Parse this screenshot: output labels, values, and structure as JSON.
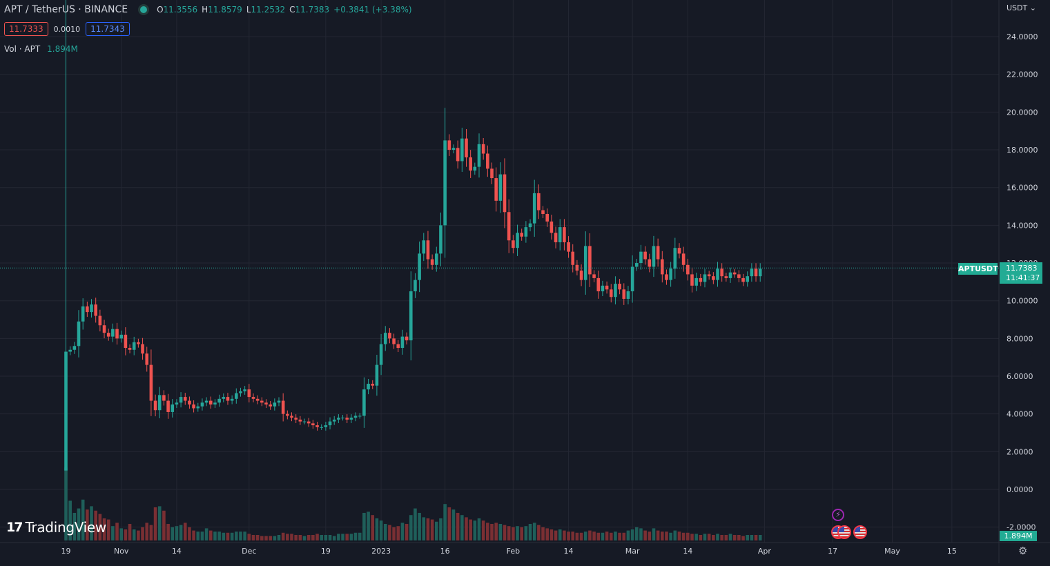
{
  "legend": {
    "title": "APT / TetherUS · BINANCE",
    "open_key": "O",
    "open": "11.3556",
    "high_key": "H",
    "high": "11.8579",
    "low_key": "L",
    "low": "11.2532",
    "close_key": "C",
    "close": "11.7383",
    "change": "+0.3841 (+3.38%)"
  },
  "quote": {
    "bid": "11.7333",
    "spread": "0.0010",
    "ask": "11.7343"
  },
  "volume_legend": {
    "label": "Vol · APT",
    "value": "1.894M"
  },
  "currency_label": "USDT ⌄",
  "last_price": {
    "symbol": "APTUSDT",
    "price": "11.7383",
    "countdown": "11:41:37"
  },
  "volume_badge": "1.894M",
  "logo": {
    "mark": "17",
    "word": "TradingView"
  },
  "icons": {
    "flash": "flash-icon",
    "flag": "us-flag-icon",
    "settings": "gear-icon"
  },
  "colors": {
    "background": "#161a25",
    "up": "#26a69a",
    "down": "#ef5350",
    "grid": "#242733",
    "badge": "#22ab94"
  },
  "chart_data": {
    "type": "candlestick",
    "symbol": "APT / TetherUS · BINANCE",
    "ylim": [
      -2,
      25
    ],
    "y_ticks": [
      "24.0000",
      "22.0000",
      "20.0000",
      "18.0000",
      "16.0000",
      "14.0000",
      "12.0000",
      "10.0000",
      "8.0000",
      "6.0000",
      "4.0000",
      "2.0000",
      "0.0000",
      "-2.0000"
    ],
    "y_tick_values": [
      24,
      22,
      20,
      18,
      16,
      14,
      12,
      10,
      8,
      6,
      4,
      2,
      0,
      -2
    ],
    "x_ticks": [
      {
        "label": "19",
        "bar": 0
      },
      {
        "label": "Nov",
        "bar": 13
      },
      {
        "label": "14",
        "bar": 26
      },
      {
        "label": "Dec",
        "bar": 43
      },
      {
        "label": "19",
        "bar": 61
      },
      {
        "label": "2023",
        "bar": 74
      },
      {
        "label": "16",
        "bar": 89
      },
      {
        "label": "Feb",
        "bar": 105
      },
      {
        "label": "14",
        "bar": 118
      },
      {
        "label": "Mar",
        "bar": 133
      },
      {
        "label": "14",
        "bar": 146
      },
      {
        "label": "Apr",
        "bar": 164
      },
      {
        "label": "17",
        "bar": 180
      },
      {
        "label": "May",
        "bar": 194
      },
      {
        "label": "15",
        "bar": 208
      }
    ],
    "last_price": 11.7383,
    "closes": [
      7.3,
      7.4,
      7.6,
      8.9,
      9.7,
      9.4,
      9.8,
      9.2,
      8.7,
      8.3,
      8.1,
      8.5,
      8.0,
      8.2,
      7.5,
      7.4,
      7.8,
      7.7,
      7.2,
      6.6,
      4.7,
      4.2,
      5.0,
      4.7,
      4.1,
      4.5,
      4.6,
      4.9,
      4.7,
      4.5,
      4.3,
      4.4,
      4.6,
      4.7,
      4.5,
      4.6,
      4.8,
      4.9,
      4.7,
      4.8,
      5.1,
      5.2,
      5.3,
      4.9,
      4.8,
      4.7,
      4.6,
      4.5,
      4.4,
      4.6,
      4.7,
      4.0,
      3.9,
      3.8,
      3.7,
      3.6,
      3.6,
      3.5,
      3.4,
      3.3,
      3.3,
      3.4,
      3.6,
      3.7,
      3.8,
      3.8,
      3.7,
      3.8,
      3.9,
      3.9,
      5.3,
      5.6,
      5.5,
      6.6,
      7.7,
      8.3,
      8.0,
      7.7,
      7.5,
      8.1,
      7.9,
      10.5,
      11.1,
      12.5,
      13.2,
      12.2,
      11.9,
      12.5,
      14.0,
      18.5,
      18.0,
      18.1,
      17.4,
      18.6,
      17.6,
      16.9,
      17.1,
      18.3,
      17.8,
      17.0,
      16.5,
      15.3,
      16.7,
      14.7,
      13.2,
      12.8,
      13.6,
      13.4,
      13.9,
      14.1,
      15.7,
      14.8,
      14.6,
      14.2,
      13.6,
      13.1,
      13.9,
      13.1,
      12.6,
      11.9,
      11.6,
      11.1,
      12.9,
      11.4,
      11.2,
      10.5,
      10.8,
      10.6,
      10.2,
      10.9,
      10.6,
      10.1,
      10.5,
      11.8,
      12.0,
      12.6,
      12.2,
      11.8,
      12.9,
      12.2,
      11.4,
      11.1,
      11.7,
      12.8,
      12.5,
      11.9,
      11.4,
      10.8,
      11.2,
      11.0,
      11.4,
      11.3,
      11.1,
      11.7,
      11.3,
      11.2,
      11.5,
      11.4,
      11.2,
      11.0,
      11.3,
      11.7,
      11.3,
      11.7
    ],
    "volumes": [
      6.6,
      3.6,
      2.5,
      2.9,
      3.7,
      2.8,
      3.1,
      2.7,
      2.4,
      2.0,
      1.9,
      1.3,
      1.6,
      1.1,
      1.0,
      1.5,
      1.0,
      0.9,
      1.2,
      1.6,
      1.4,
      3.0,
      3.1,
      2.7,
      1.5,
      1.2,
      1.3,
      1.4,
      1.6,
      1.2,
      0.9,
      0.8,
      0.8,
      1.1,
      0.9,
      0.8,
      0.8,
      0.7,
      0.7,
      0.7,
      0.8,
      0.8,
      0.8,
      0.6,
      0.5,
      0.5,
      0.4,
      0.4,
      0.4,
      0.4,
      0.5,
      0.7,
      0.6,
      0.6,
      0.5,
      0.5,
      0.4,
      0.5,
      0.5,
      0.6,
      0.5,
      0.5,
      0.5,
      0.4,
      0.6,
      0.6,
      0.6,
      0.6,
      0.7,
      0.7,
      2.5,
      2.6,
      2.3,
      2.0,
      1.8,
      1.5,
      1.4,
      1.2,
      1.3,
      1.6,
      1.5,
      2.3,
      2.9,
      2.5,
      2.1,
      2.0,
      1.9,
      1.7,
      2.0,
      3.3,
      3.0,
      2.8,
      2.5,
      2.3,
      2.1,
      1.9,
      1.8,
      2.0,
      1.8,
      1.6,
      1.5,
      1.6,
      1.5,
      1.4,
      1.3,
      1.2,
      1.3,
      1.2,
      1.3,
      1.5,
      1.6,
      1.4,
      1.2,
      1.1,
      1.0,
      0.9,
      1.0,
      0.9,
      0.8,
      0.8,
      0.7,
      0.7,
      0.8,
      0.9,
      0.8,
      0.7,
      0.7,
      0.8,
      0.7,
      0.8,
      0.7,
      0.7,
      0.9,
      1.0,
      1.2,
      1.1,
      0.9,
      0.8,
      1.1,
      0.9,
      0.8,
      0.8,
      0.7,
      0.9,
      0.8,
      0.7,
      0.7,
      0.6,
      0.6,
      0.5,
      0.6,
      0.6,
      0.5,
      0.6,
      0.5,
      0.5,
      0.6,
      0.5,
      0.5,
      0.4,
      0.5,
      0.5,
      0.5,
      0.5
    ]
  }
}
